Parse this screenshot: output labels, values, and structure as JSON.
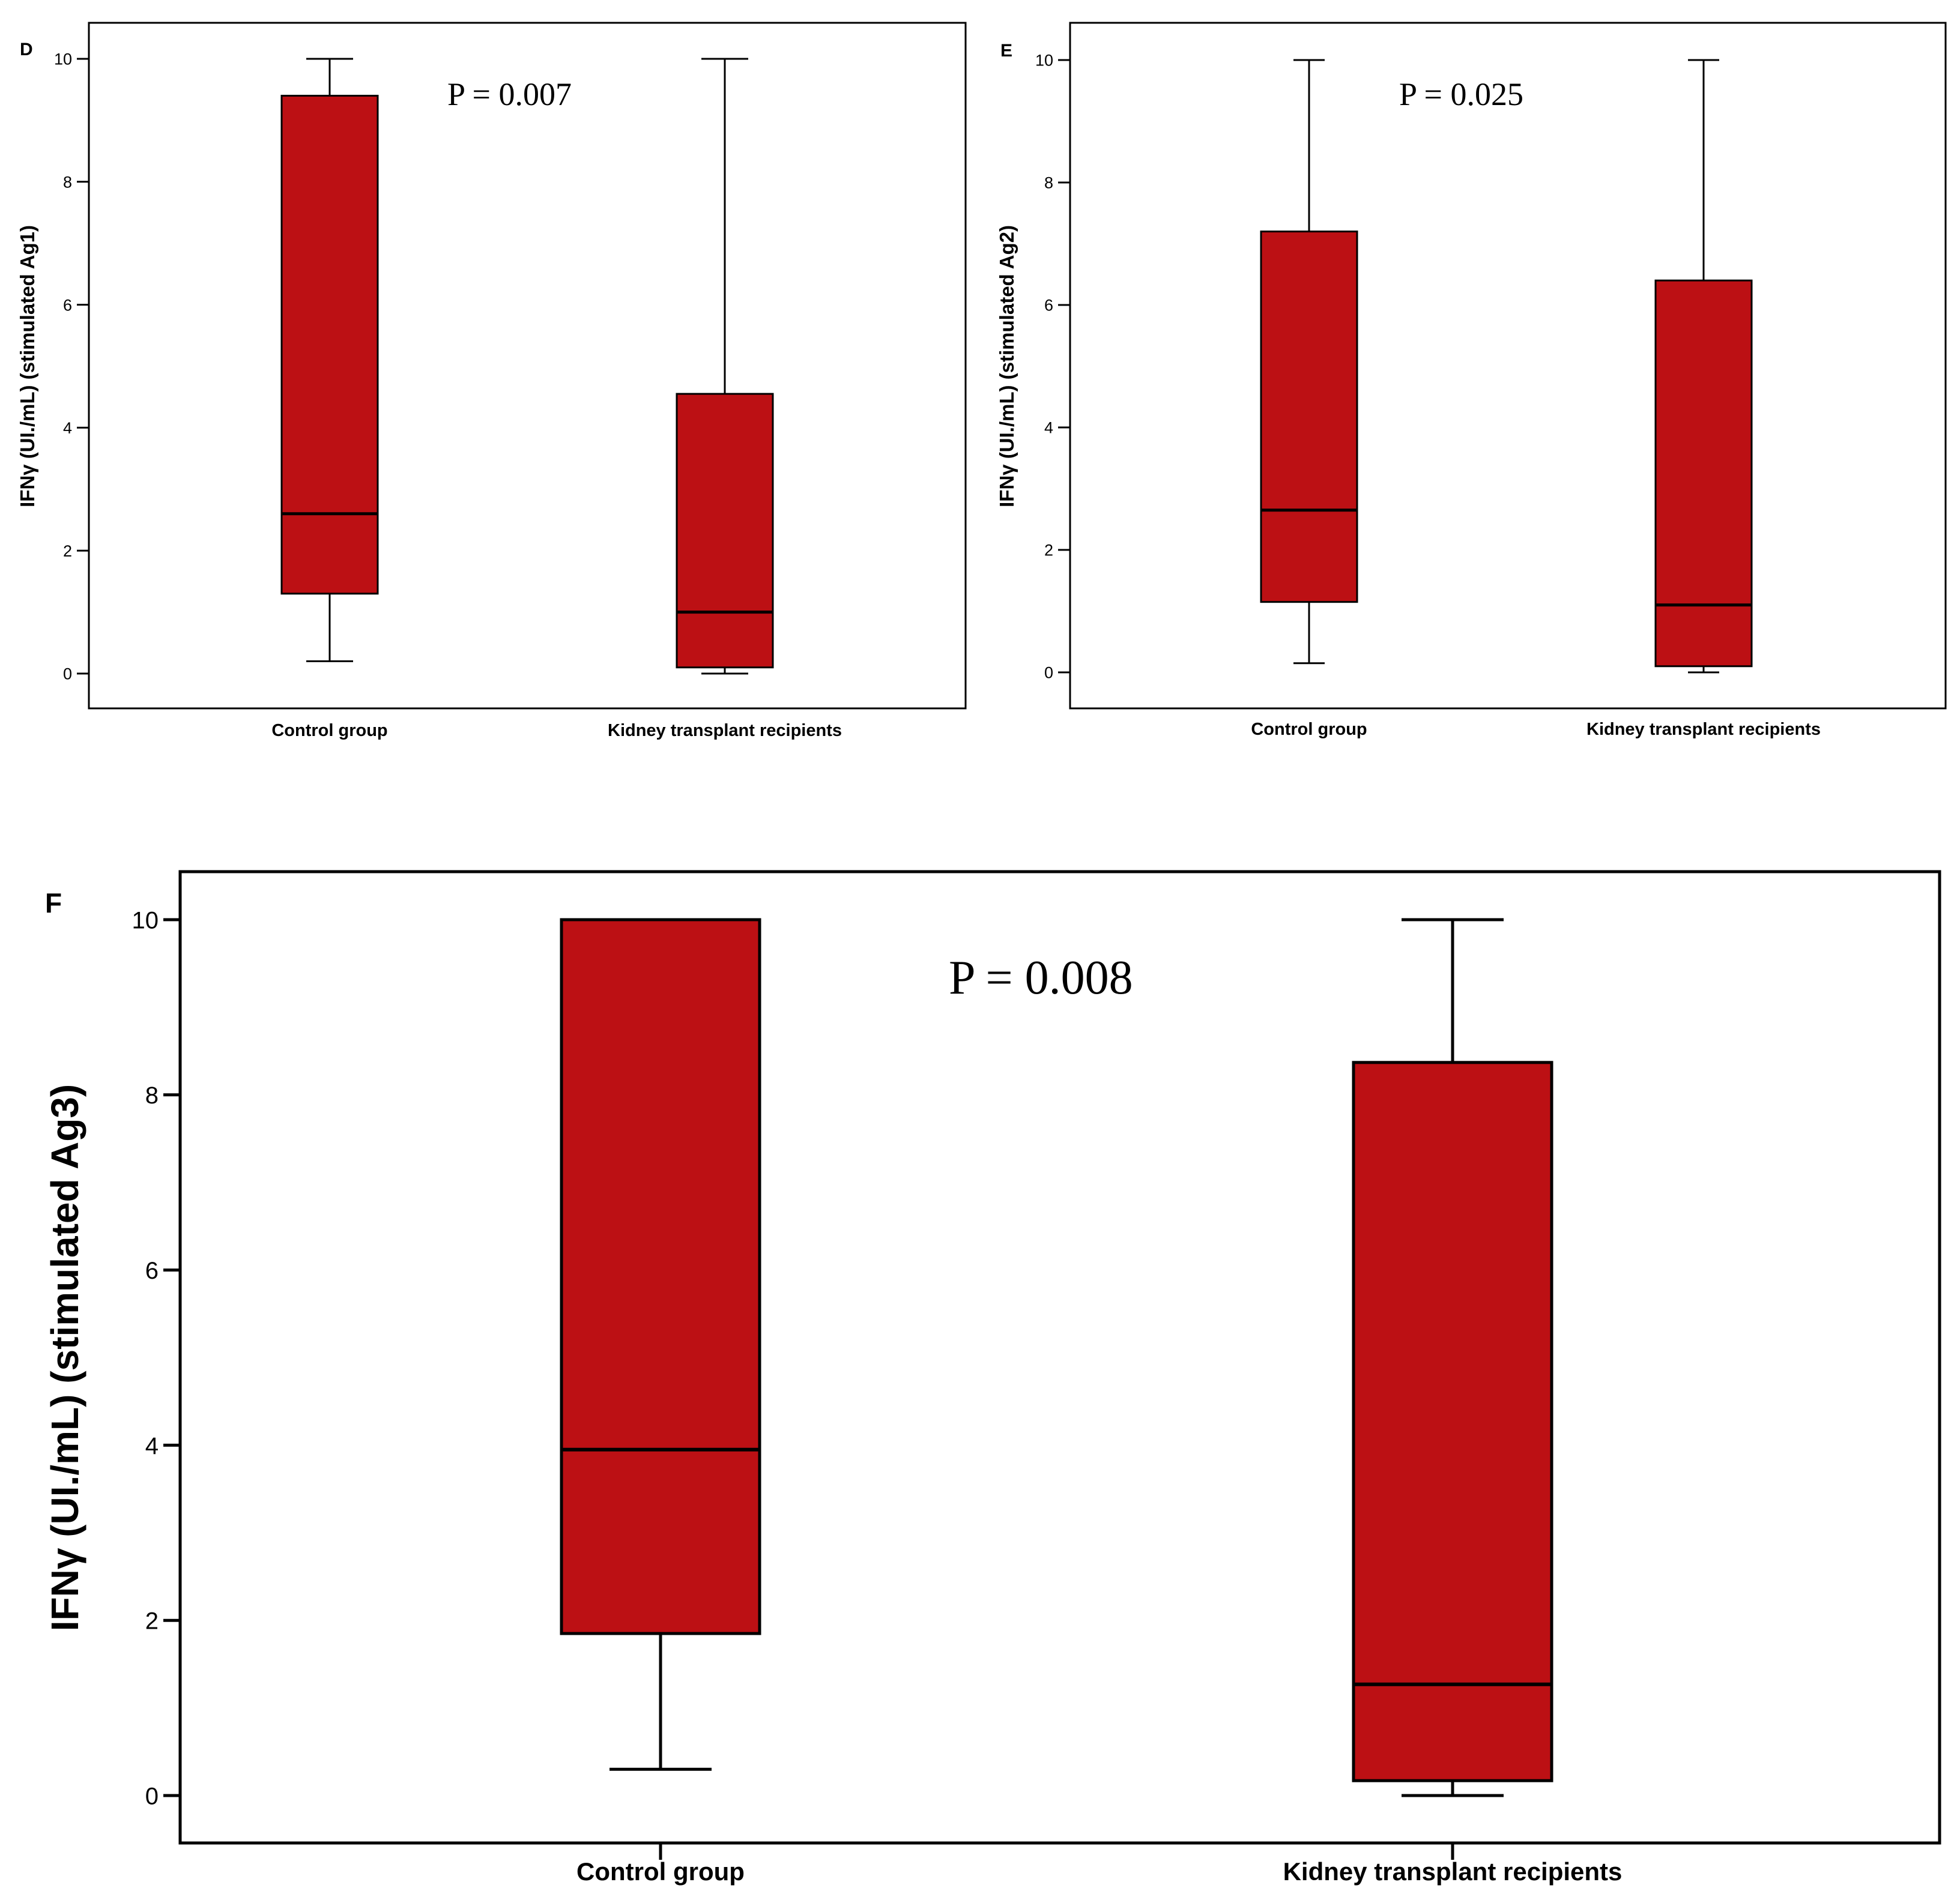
{
  "chart_data": [
    {
      "type": "boxplot",
      "panel": "D",
      "p_value_label": "P = 0.007",
      "ylabel": "IFNγ (UI./mL) (stimulated Ag1)",
      "xlabel": "",
      "ylim": [
        0,
        10
      ],
      "yticks": [
        "0",
        "2",
        "4",
        "6",
        "8",
        "10"
      ],
      "categories": [
        "Control group",
        "Kidney transplant recipients"
      ],
      "boxes": [
        {
          "name": "Control group",
          "min": 0.2,
          "q1": 1.3,
          "median": 2.6,
          "q3": 9.4,
          "max": 10
        },
        {
          "name": "Kidney transplant recipients",
          "min": 0.0,
          "q1": 0.1,
          "median": 1.0,
          "q3": 4.55,
          "max": 10
        }
      ],
      "box_color": "#BC1014"
    },
    {
      "type": "boxplot",
      "panel": "E",
      "p_value_label": "P = 0.025",
      "ylabel": "IFNγ (UI./mL) (stimulated Ag2)",
      "xlabel": "",
      "ylim": [
        0,
        10
      ],
      "yticks": [
        "0",
        "2",
        "4",
        "6",
        "8",
        "10"
      ],
      "categories": [
        "Control group",
        "Kidney transplant recipients"
      ],
      "boxes": [
        {
          "name": "Control group",
          "min": 0.15,
          "q1": 1.15,
          "median": 2.65,
          "q3": 7.2,
          "max": 10
        },
        {
          "name": "Kidney transplant recipients",
          "min": 0.0,
          "q1": 0.1,
          "median": 1.1,
          "q3": 6.4,
          "max": 10
        }
      ],
      "box_color": "#BC1014"
    },
    {
      "type": "boxplot",
      "panel": "F",
      "p_value_label": "P = 0.008",
      "ylabel": "IFNγ (UI./mL) (stimulated Ag3)",
      "xlabel": "",
      "ylim": [
        0,
        10
      ],
      "yticks": [
        "0",
        "2",
        "4",
        "6",
        "8",
        "10"
      ],
      "categories": [
        "Control group",
        "Kidney transplant recipients"
      ],
      "boxes": [
        {
          "name": "Control group",
          "min": 0.3,
          "q1": 1.85,
          "median": 3.95,
          "q3": 10,
          "max": 10
        },
        {
          "name": "Kidney transplant recipients",
          "min": 0.0,
          "q1": 0.17,
          "median": 1.27,
          "q3": 8.37,
          "max": 10
        }
      ],
      "box_color": "#BC1014"
    }
  ]
}
